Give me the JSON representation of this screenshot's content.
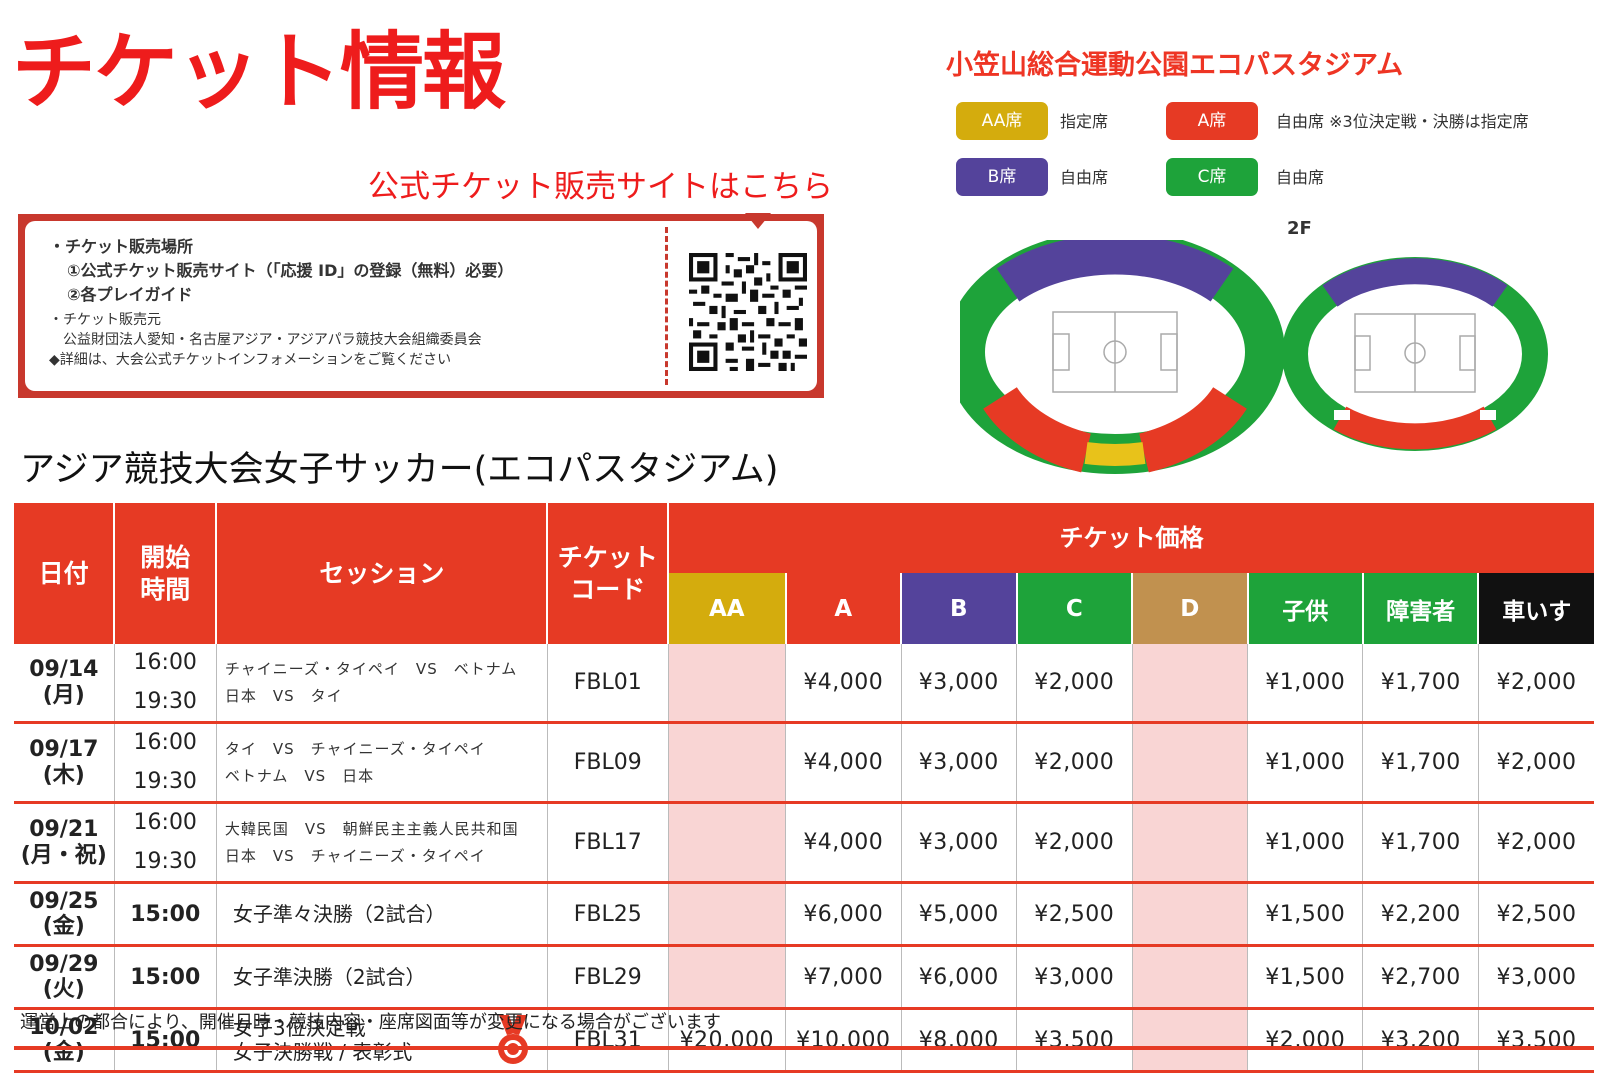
{
  "page": {
    "title": "チケット情報",
    "official_link": "公式チケット販売サイトはこちら"
  },
  "sales_info": {
    "lines": [
      "・チケット販売場所",
      "①公式チケット販売サイト（「応援 ID」の登録（無料）必要）",
      "②各プレイガイド",
      "・チケット販売元",
      "公益財団法人愛知・名古屋アジア・アジアパラ競技大会組織委員会",
      "◆詳細は、大会公式チケットインフォメーションをご覧ください"
    ]
  },
  "stadium": {
    "name": "小笠山総合運動公園エコパスタジアム",
    "floor_label": "2F",
    "legend": [
      {
        "badge": "AA席",
        "text": "指定席",
        "color": "#d4ac0d"
      },
      {
        "badge": "A席",
        "text": "自由席 ※3位決定戦・決勝は指定席",
        "color": "#e63a24"
      },
      {
        "badge": "B席",
        "text": "自由席",
        "color": "#54439b"
      },
      {
        "badge": "C席",
        "text": "自由席",
        "color": "#1ea33a"
      }
    ]
  },
  "schedule": {
    "title": "アジア競技大会女子サッカー(エコパスタジアム)",
    "headers": {
      "date": "日付",
      "start_time": "開始\n時間",
      "session": "セッション",
      "ticket_code": "チケット\nコード",
      "price_group": "チケット価格"
    },
    "price_columns": [
      {
        "label": "AA",
        "color": "#d4ac0d"
      },
      {
        "label": "A",
        "color": "#e63a24"
      },
      {
        "label": "B",
        "color": "#54439b"
      },
      {
        "label": "C",
        "color": "#1ea33a"
      },
      {
        "label": "D",
        "color": "#c1914f"
      },
      {
        "label": "子供",
        "color": "#1ea33a"
      },
      {
        "label": "障害者",
        "color": "#1ea33a"
      },
      {
        "label": "車いす",
        "color": "#111111"
      }
    ],
    "rows": [
      {
        "date": "09/14",
        "weekday": "(月)",
        "times": [
          "16:00",
          "19:30"
        ],
        "sessions": [
          "チャイニーズ・タイペイ　VS　ベトナム",
          "日本　VS　タイ"
        ],
        "code": "FBL01",
        "prices": [
          "",
          "¥4,000",
          "¥3,000",
          "¥2,000",
          "",
          "¥1,000",
          "¥1,700",
          "¥2,000"
        ]
      },
      {
        "date": "09/17",
        "weekday": "(木)",
        "times": [
          "16:00",
          "19:30"
        ],
        "sessions": [
          "タイ　VS　チャイニーズ・タイペイ",
          "ベトナム　VS　日本"
        ],
        "code": "FBL09",
        "prices": [
          "",
          "¥4,000",
          "¥3,000",
          "¥2,000",
          "",
          "¥1,000",
          "¥1,700",
          "¥2,000"
        ]
      },
      {
        "date": "09/21",
        "weekday": "(月・祝)",
        "times": [
          "16:00",
          "19:30"
        ],
        "sessions": [
          "大韓民国　VS　朝鮮民主主義人民共和国",
          "日本　VS　チャイニーズ・タイペイ"
        ],
        "code": "FBL17",
        "prices": [
          "",
          "¥4,000",
          "¥3,000",
          "¥2,000",
          "",
          "¥1,000",
          "¥1,700",
          "¥2,000"
        ]
      },
      {
        "date": "09/25",
        "weekday": "(金)",
        "times": [
          "15:00"
        ],
        "sessions": [
          "女子準々決勝（2試合）"
        ],
        "code": "FBL25",
        "prices": [
          "",
          "¥6,000",
          "¥5,000",
          "¥2,500",
          "",
          "¥1,500",
          "¥2,200",
          "¥2,500"
        ]
      },
      {
        "date": "09/29",
        "weekday": "(火)",
        "times": [
          "15:00"
        ],
        "sessions": [
          "女子準決勝（2試合）"
        ],
        "code": "FBL29",
        "prices": [
          "",
          "¥7,000",
          "¥6,000",
          "¥3,000",
          "",
          "¥1,500",
          "¥2,700",
          "¥3,000"
        ]
      },
      {
        "date": "10/02",
        "weekday": "(金)",
        "times": [
          "15:00"
        ],
        "sessions": [
          "女子3位決定戦",
          "女子決勝戦 / 表彰式"
        ],
        "code": "FBL31",
        "medal": true,
        "prices": [
          "¥20,000",
          "¥10,000",
          "¥8,000",
          "¥3,500",
          "",
          "¥2,000",
          "¥3,200",
          "¥3,500"
        ]
      }
    ],
    "footnote": "運営上の都合により、開催日時・競技内容・座席図面等が変更になる場合がございます"
  }
}
